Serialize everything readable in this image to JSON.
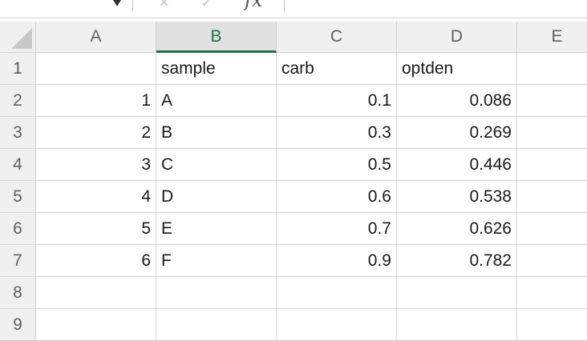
{
  "formula_bar": {
    "fx_label": "fx",
    "cancel_icon": "x-icon",
    "confirm_icon": "check-icon"
  },
  "columns": [
    "A",
    "B",
    "C",
    "D",
    "E"
  ],
  "selected_column": "B",
  "rows": [
    "1",
    "2",
    "3",
    "4",
    "5",
    "6",
    "7",
    "8",
    "9"
  ],
  "cells": [
    [
      "",
      "sample",
      "carb",
      "optden",
      ""
    ],
    [
      "1",
      "A",
      "0.1",
      "0.086",
      ""
    ],
    [
      "2",
      "B",
      "0.3",
      "0.269",
      ""
    ],
    [
      "3",
      "C",
      "0.5",
      "0.446",
      ""
    ],
    [
      "4",
      "D",
      "0.6",
      "0.538",
      ""
    ],
    [
      "5",
      "E",
      "0.7",
      "0.626",
      ""
    ],
    [
      "6",
      "F",
      "0.9",
      "0.782",
      ""
    ],
    [
      "",
      "",
      "",
      "",
      ""
    ],
    [
      "",
      "",
      "",
      "",
      ""
    ]
  ],
  "colors": {
    "header_bg": "#f0f0f0",
    "gridline": "#d4d4d4",
    "selected_accent": "#217346"
  }
}
